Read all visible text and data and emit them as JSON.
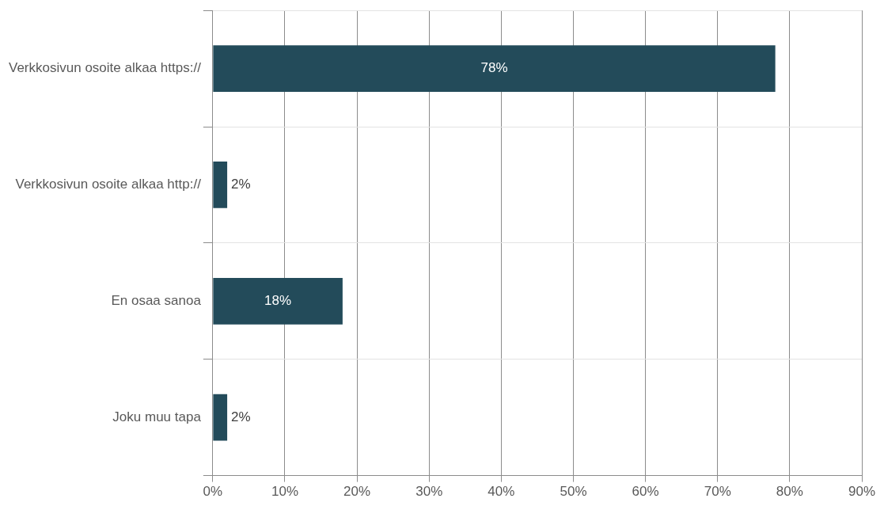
{
  "chart_data": {
    "type": "bar",
    "orientation": "horizontal",
    "categories": [
      "Verkkosivun osoite alkaa https://",
      "Verkkosivun osoite alkaa http://",
      "En osaa sanoa",
      "Joku muu tapa"
    ],
    "values": [
      78,
      2,
      18,
      2
    ],
    "color": "#234b5a",
    "value_labels": [
      "78%",
      "2%",
      "18%",
      "2%"
    ],
    "xlim": [
      0,
      90
    ],
    "xticks": [
      {
        "value": 0,
        "label": "0%"
      },
      {
        "value": 10,
        "label": "10%"
      },
      {
        "value": 20,
        "label": "20%"
      },
      {
        "value": 30,
        "label": "30%"
      },
      {
        "value": 40,
        "label": "40%"
      },
      {
        "value": 50,
        "label": "50%"
      },
      {
        "value": 60,
        "label": "60%"
      },
      {
        "value": 70,
        "label": "70%"
      },
      {
        "value": 80,
        "label": "80%"
      },
      {
        "value": 90,
        "label": "90%"
      }
    ],
    "grid": true,
    "legend": false
  }
}
